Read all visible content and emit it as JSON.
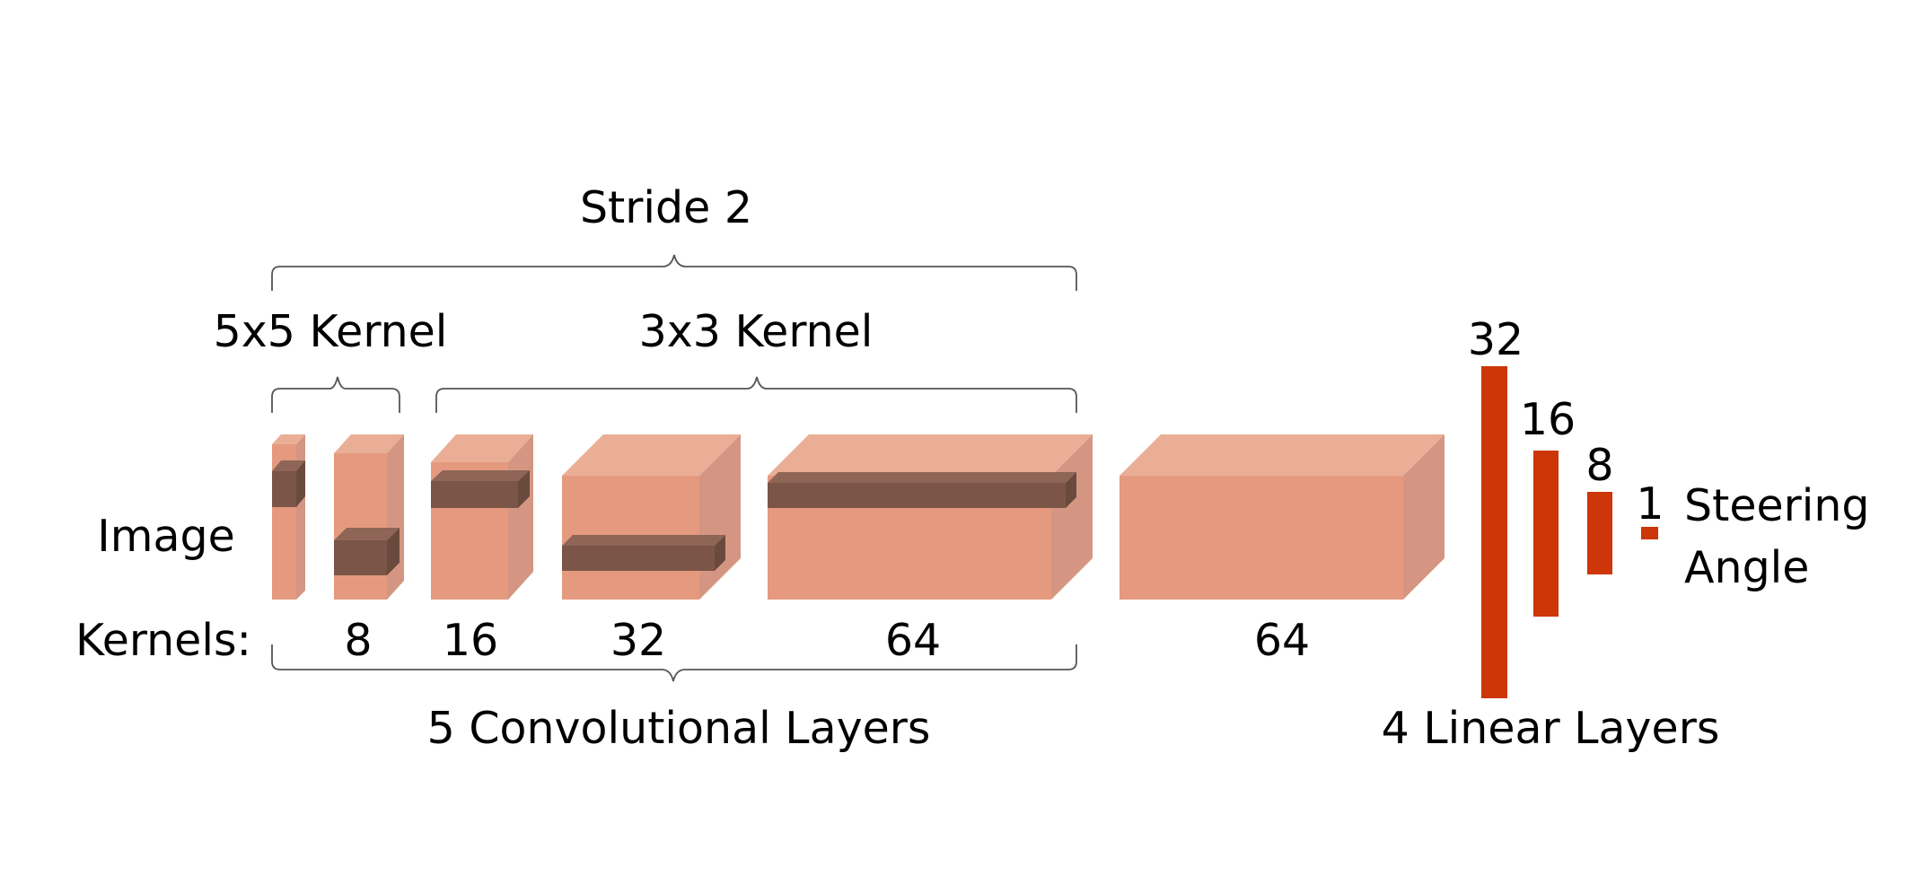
{
  "labels": {
    "stride": "Stride 2",
    "kernel_5x5": "5x5 Kernel",
    "kernel_3x3": "3x3 Kernel",
    "image": "Image",
    "kernels_row": "Kernels:",
    "conv_group": "5 Convolutional Layers",
    "linear_group": "4 Linear Layers",
    "output_line1": "Steering",
    "output_line2": "Angle"
  },
  "conv_blocks": [
    {
      "kernels": "8"
    },
    {
      "kernels": "16"
    },
    {
      "kernels": "32"
    },
    {
      "kernels": "64"
    },
    {
      "kernels": "64"
    }
  ],
  "linear_layers": [
    {
      "units": "32"
    },
    {
      "units": "16"
    },
    {
      "units": "8"
    },
    {
      "units": "1"
    }
  ],
  "colors": {
    "block_front": "#E59A7F",
    "block_top": "#EAAE96",
    "block_side": "#D49683",
    "kernel_front": "#7B5547",
    "kernel_top": "#8E6556",
    "kernel_side": "#6B4A3E",
    "linear_bar": "#CC3608"
  }
}
